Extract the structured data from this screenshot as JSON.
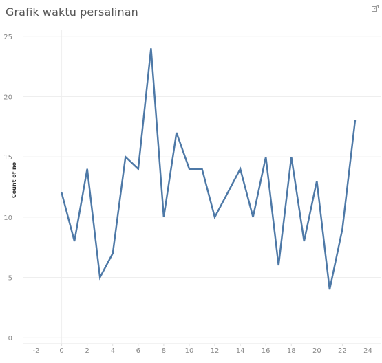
{
  "header": {
    "title": "Grafik waktu persalinan",
    "export_icon": "export-icon"
  },
  "colors": {
    "line": "#4e79a7",
    "grid": "#eeeeee",
    "tick_text": "#888888",
    "axis_label": "#333333",
    "title": "#555555"
  },
  "chart_data": {
    "type": "line",
    "title": "Grafik waktu persalinan",
    "xlabel": "",
    "ylabel": "Count of no",
    "xlim": [
      -3,
      25
    ],
    "ylim": [
      -0.5,
      25.5
    ],
    "xticks": [
      -2,
      0,
      2,
      4,
      6,
      8,
      10,
      12,
      14,
      16,
      18,
      20,
      22,
      24
    ],
    "yticks": [
      0,
      5,
      10,
      15,
      20,
      25
    ],
    "grid": true,
    "legend": "none",
    "series": [
      {
        "x": [
          0,
          1,
          2,
          3,
          4,
          5,
          6,
          7,
          8,
          9,
          10,
          11,
          12,
          13,
          14,
          15,
          16,
          17,
          18,
          19,
          20,
          21,
          22,
          23
        ],
        "values": [
          12,
          8,
          14,
          5,
          7,
          15,
          14,
          24,
          10,
          17,
          14,
          14,
          10,
          12,
          14,
          10,
          15,
          6,
          15,
          8,
          13,
          4,
          9,
          18
        ]
      }
    ]
  }
}
